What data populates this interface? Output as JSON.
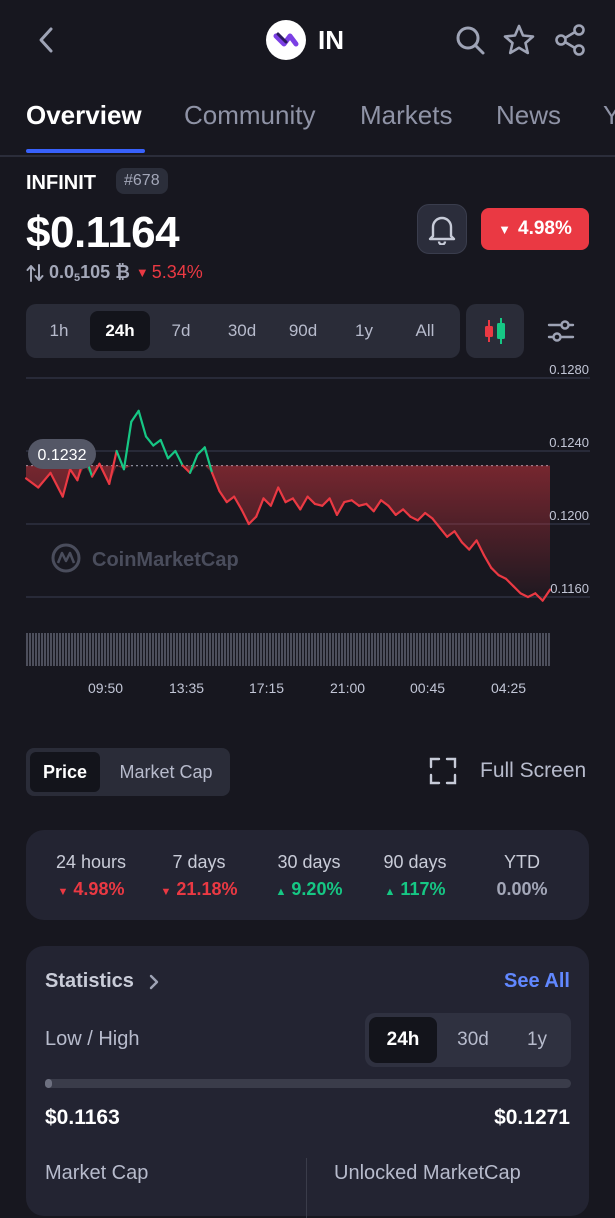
{
  "header": {
    "symbol": "IN"
  },
  "tabs": [
    "Overview",
    "Community",
    "Markets",
    "News",
    "Y"
  ],
  "coin": {
    "name": "INFINIT",
    "rank": "#678",
    "price": "$0.1164",
    "change_24h": "4.98%",
    "btc_prefix": "0.0",
    "btc_sub": "5",
    "btc_value": "105 ₿",
    "btc_change": "5.34%"
  },
  "ranges": [
    "1h",
    "24h",
    "7d",
    "30d",
    "90d",
    "1y",
    "All"
  ],
  "active_range": "24h",
  "chart_data": {
    "type": "line",
    "open_price": 0.1232,
    "open_label": "0.1232",
    "ylim": [
      0.115,
      0.129
    ],
    "yticks": [
      "0.1280",
      "0.1240",
      "0.1200",
      "0.1160"
    ],
    "xticks": [
      "09:50",
      "13:35",
      "17:15",
      "21:00",
      "00:45",
      "04:25"
    ],
    "watermark": "CoinMarketCap",
    "series": [
      {
        "x_index": [
          0,
          5,
          10,
          15,
          18,
          21,
          24,
          27,
          30,
          34,
          37,
          40,
          43,
          46,
          49,
          52,
          55,
          58,
          61,
          64,
          67,
          70,
          73,
          76,
          79,
          82,
          85,
          88,
          91,
          94,
          97,
          100,
          103,
          106,
          109,
          112,
          115,
          118,
          121,
          124,
          127,
          130,
          133,
          136,
          139,
          142,
          145,
          148,
          151,
          154,
          157,
          160,
          163,
          166,
          169,
          172,
          175,
          178,
          181,
          184,
          187,
          190,
          193,
          196,
          199,
          202,
          205,
          208,
          211,
          214
        ],
        "values": [
          0.1225,
          0.122,
          0.1228,
          0.1215,
          0.123,
          0.1224,
          0.1238,
          0.1226,
          0.1233,
          0.1222,
          0.124,
          0.123,
          0.1256,
          0.1262,
          0.1248,
          0.1243,
          0.1246,
          0.1236,
          0.124,
          0.1232,
          0.1228,
          0.1238,
          0.1242,
          0.1228,
          0.1218,
          0.1212,
          0.1215,
          0.1208,
          0.12,
          0.1204,
          0.1214,
          0.121,
          0.122,
          0.1212,
          0.1214,
          0.1208,
          0.1215,
          0.1211,
          0.121,
          0.1214,
          0.1205,
          0.1212,
          0.1213,
          0.121,
          0.1211,
          0.1207,
          0.1213,
          0.121,
          0.1205,
          0.1208,
          0.1204,
          0.1202,
          0.1206,
          0.1203,
          0.1198,
          0.1193,
          0.1196,
          0.119,
          0.1186,
          0.1191,
          0.1183,
          0.1176,
          0.1172,
          0.117,
          0.1166,
          0.1162,
          0.116,
          0.1162,
          0.1158,
          0.1164
        ]
      }
    ]
  },
  "toggle": {
    "price": "Price",
    "market_cap": "Market Cap"
  },
  "full_screen": "Full Screen",
  "performance": [
    {
      "period": "24 hours",
      "value": "4.98%",
      "dir": "down"
    },
    {
      "period": "7 days",
      "value": "21.18%",
      "dir": "down"
    },
    {
      "period": "30 days",
      "value": "9.20%",
      "dir": "up"
    },
    {
      "period": "90 days",
      "value": "117%",
      "dir": "up"
    },
    {
      "period": "YTD",
      "value": "0.00%",
      "dir": "flat"
    }
  ],
  "statistics": {
    "title": "Statistics",
    "see_all": "See All",
    "low_high_label": "Low / High",
    "periods": [
      "24h",
      "30d",
      "1y"
    ],
    "low": "$0.1163",
    "high": "$0.1271",
    "market_cap_label": "Market Cap",
    "unlocked_label": "Unlocked MarketCap"
  },
  "colors": {
    "up": "#16c784",
    "down": "#ea3943",
    "accent": "#3861fb",
    "background": "#17171f"
  }
}
